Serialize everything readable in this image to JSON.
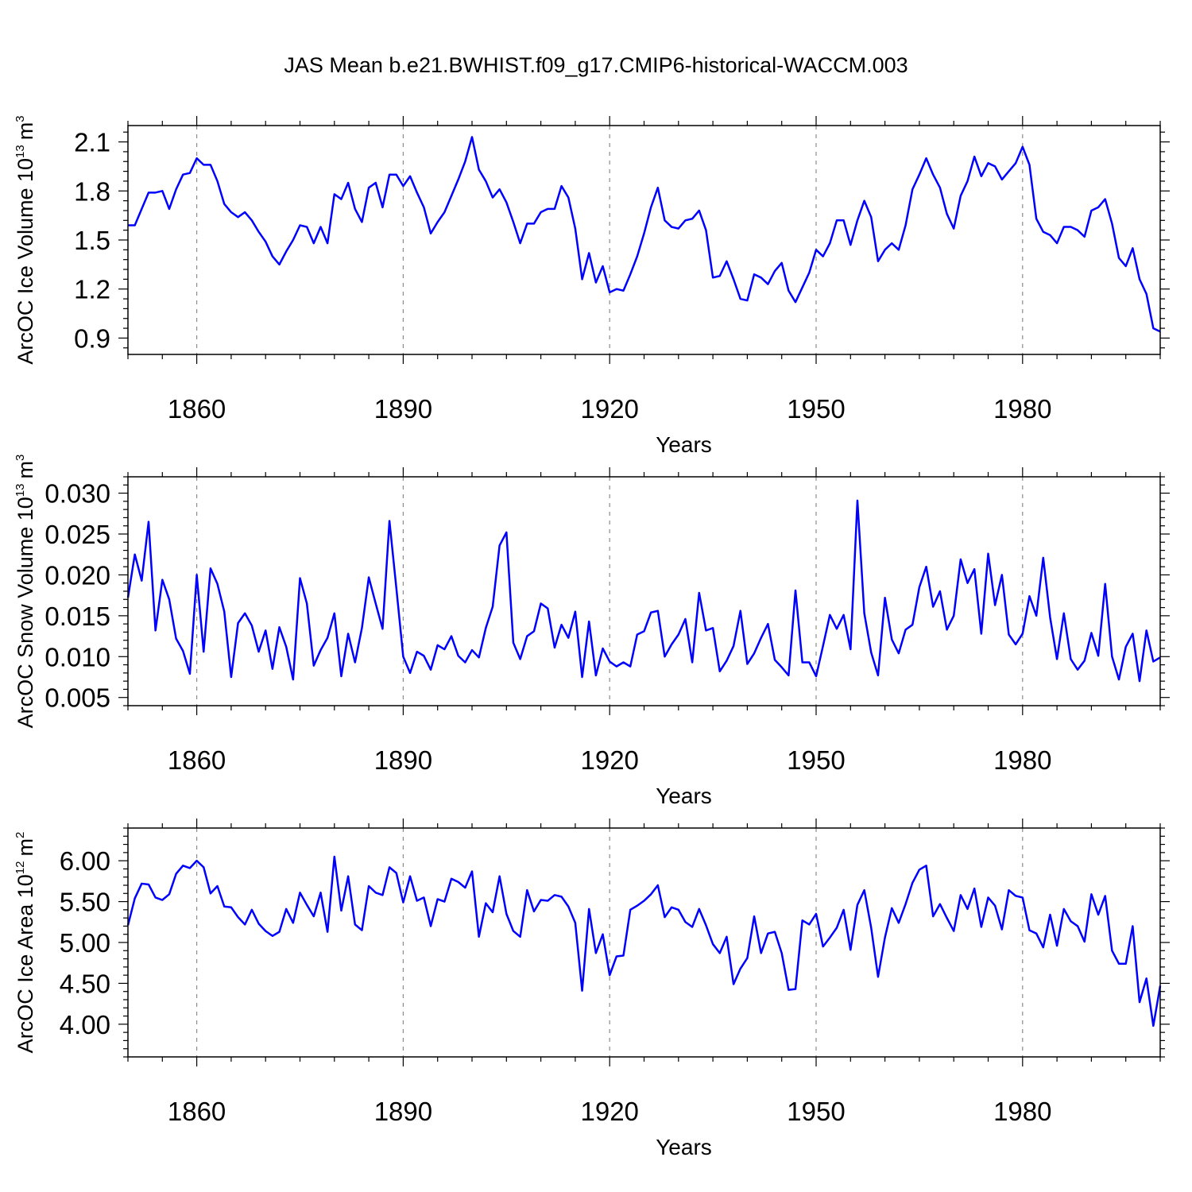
{
  "title": "JAS Mean b.e21.BWHIST.f09_g17.CMIP6-historical-WACCM.003",
  "series_color": "#0000ff",
  "grid_color": "#8c8c8c",
  "chart_data": [
    {
      "type": "line",
      "name": "ice-volume",
      "ylabel": "ArcOC Ice Volume 10",
      "ylabel_exp": "13",
      "ylabel_unit": "m",
      "ylabel_unit_exp": "3",
      "xlabel": "Years",
      "x_start": 1850,
      "xlim": [
        1850,
        2000
      ],
      "ylim": [
        0.8,
        2.2
      ],
      "xticks": [
        1860,
        1890,
        1920,
        1950,
        1980
      ],
      "xtick_labels": [
        "1860",
        "1890",
        "1920",
        "1950",
        "1980"
      ],
      "yticks": [
        0.9,
        1.2,
        1.5,
        1.8,
        2.1
      ],
      "ytick_labels": [
        "0.9",
        "1.2",
        "1.5",
        "1.8",
        "2.1"
      ],
      "values": [
        1.59,
        1.59,
        1.69,
        1.79,
        1.79,
        1.8,
        1.69,
        1.81,
        1.9,
        1.91,
        2.0,
        1.96,
        1.96,
        1.86,
        1.72,
        1.67,
        1.64,
        1.67,
        1.62,
        1.55,
        1.49,
        1.4,
        1.35,
        1.43,
        1.5,
        1.59,
        1.58,
        1.48,
        1.58,
        1.48,
        1.78,
        1.75,
        1.85,
        1.69,
        1.61,
        1.82,
        1.85,
        1.7,
        1.9,
        1.9,
        1.83,
        1.89,
        1.79,
        1.7,
        1.54,
        1.61,
        1.67,
        1.77,
        1.87,
        1.98,
        2.13,
        1.93,
        1.86,
        1.76,
        1.81,
        1.73,
        1.61,
        1.48,
        1.6,
        1.6,
        1.67,
        1.69,
        1.69,
        1.83,
        1.76,
        1.57,
        1.26,
        1.42,
        1.24,
        1.34,
        1.18,
        1.2,
        1.19,
        1.29,
        1.4,
        1.54,
        1.7,
        1.82,
        1.62,
        1.58,
        1.57,
        1.62,
        1.63,
        1.68,
        1.56,
        1.27,
        1.28,
        1.37,
        1.26,
        1.14,
        1.13,
        1.29,
        1.27,
        1.23,
        1.31,
        1.36,
        1.19,
        1.12,
        1.21,
        1.3,
        1.44,
        1.4,
        1.48,
        1.62,
        1.62,
        1.47,
        1.62,
        1.74,
        1.64,
        1.37,
        1.44,
        1.48,
        1.44,
        1.59,
        1.81,
        1.9,
        2.0,
        1.9,
        1.82,
        1.66,
        1.57,
        1.77,
        1.86,
        2.01,
        1.89,
        1.97,
        1.95,
        1.87,
        1.92,
        1.97,
        2.07,
        1.96,
        1.63,
        1.55,
        1.53,
        1.48,
        1.58,
        1.58,
        1.56,
        1.52,
        1.68,
        1.7,
        1.75,
        1.6,
        1.39,
        1.34,
        1.45,
        1.26,
        1.17,
        0.96,
        0.94
      ]
    },
    {
      "type": "line",
      "name": "snow-volume",
      "ylabel": "ArcOC Snow Volume 10",
      "ylabel_exp": "13",
      "ylabel_unit": "m",
      "ylabel_unit_exp": "3",
      "xlabel": "Years",
      "x_start": 1850,
      "xlim": [
        1850,
        2000
      ],
      "ylim": [
        0.004,
        0.032
      ],
      "xticks": [
        1860,
        1890,
        1920,
        1950,
        1980
      ],
      "xtick_labels": [
        "1860",
        "1890",
        "1920",
        "1950",
        "1980"
      ],
      "yticks": [
        0.005,
        0.01,
        0.015,
        0.02,
        0.025,
        0.03
      ],
      "ytick_labels": [
        "0.005",
        "0.010",
        "0.015",
        "0.020",
        "0.025",
        "0.030"
      ],
      "values": [
        0.0172,
        0.0225,
        0.0193,
        0.0265,
        0.0132,
        0.0194,
        0.017,
        0.0122,
        0.0107,
        0.0079,
        0.02,
        0.0106,
        0.0208,
        0.0189,
        0.0155,
        0.0075,
        0.0141,
        0.0153,
        0.0138,
        0.0106,
        0.0132,
        0.0085,
        0.0136,
        0.0112,
        0.0072,
        0.0196,
        0.0165,
        0.0089,
        0.0108,
        0.0123,
        0.0153,
        0.0076,
        0.0128,
        0.0093,
        0.0135,
        0.0197,
        0.0165,
        0.0134,
        0.0266,
        0.0184,
        0.01,
        0.008,
        0.0106,
        0.0101,
        0.0084,
        0.0114,
        0.0109,
        0.0125,
        0.0101,
        0.0093,
        0.0108,
        0.0099,
        0.0135,
        0.0161,
        0.0236,
        0.0252,
        0.0117,
        0.0097,
        0.0125,
        0.0131,
        0.0165,
        0.0159,
        0.0111,
        0.0139,
        0.0123,
        0.0155,
        0.0075,
        0.0143,
        0.0077,
        0.011,
        0.0094,
        0.0088,
        0.0093,
        0.0088,
        0.0127,
        0.0131,
        0.0154,
        0.0156,
        0.01,
        0.0115,
        0.0127,
        0.0146,
        0.0093,
        0.0178,
        0.0132,
        0.0135,
        0.0082,
        0.0095,
        0.0113,
        0.0156,
        0.0091,
        0.0104,
        0.0123,
        0.014,
        0.0096,
        0.0087,
        0.0077,
        0.0181,
        0.0093,
        0.0093,
        0.0076,
        0.0113,
        0.0151,
        0.0134,
        0.0151,
        0.0109,
        0.0291,
        0.0153,
        0.0105,
        0.0077,
        0.0172,
        0.0121,
        0.0104,
        0.0133,
        0.0139,
        0.0185,
        0.021,
        0.0161,
        0.018,
        0.0133,
        0.015,
        0.0219,
        0.019,
        0.0207,
        0.0128,
        0.0226,
        0.0163,
        0.02,
        0.0127,
        0.0115,
        0.0128,
        0.0174,
        0.015,
        0.0221,
        0.0148,
        0.0097,
        0.0153,
        0.0097,
        0.0084,
        0.0095,
        0.0129,
        0.0101,
        0.0189,
        0.01,
        0.0072,
        0.0112,
        0.0128,
        0.007,
        0.0132,
        0.0094,
        0.0099
      ]
    },
    {
      "type": "line",
      "name": "ice-area",
      "ylabel": "ArcOC Ice Area 10",
      "ylabel_exp": "12",
      "ylabel_unit": "m",
      "ylabel_unit_exp": "2",
      "xlabel": "Years",
      "x_start": 1850,
      "xlim": [
        1850,
        2000
      ],
      "ylim": [
        3.6,
        6.4
      ],
      "xticks": [
        1860,
        1890,
        1920,
        1950,
        1980
      ],
      "xtick_labels": [
        "1860",
        "1890",
        "1920",
        "1950",
        "1980"
      ],
      "yticks": [
        4.0,
        4.5,
        5.0,
        5.5,
        6.0
      ],
      "ytick_labels": [
        "4.00",
        "4.50",
        "5.00",
        "5.50",
        "6.00"
      ],
      "values": [
        5.21,
        5.54,
        5.72,
        5.71,
        5.55,
        5.52,
        5.59,
        5.84,
        5.94,
        5.91,
        6.0,
        5.92,
        5.6,
        5.69,
        5.44,
        5.43,
        5.31,
        5.22,
        5.4,
        5.23,
        5.14,
        5.08,
        5.13,
        5.41,
        5.24,
        5.61,
        5.46,
        5.32,
        5.61,
        5.13,
        6.05,
        5.39,
        5.81,
        5.22,
        5.15,
        5.69,
        5.61,
        5.58,
        5.92,
        5.85,
        5.49,
        5.81,
        5.51,
        5.55,
        5.2,
        5.53,
        5.5,
        5.78,
        5.74,
        5.67,
        5.87,
        5.07,
        5.48,
        5.37,
        5.81,
        5.35,
        5.14,
        5.07,
        5.64,
        5.38,
        5.52,
        5.51,
        5.58,
        5.56,
        5.44,
        5.24,
        4.41,
        5.41,
        4.87,
        5.1,
        4.6,
        4.83,
        4.84,
        5.4,
        5.45,
        5.51,
        5.59,
        5.7,
        5.31,
        5.43,
        5.4,
        5.25,
        5.19,
        5.41,
        5.21,
        4.98,
        4.87,
        5.07,
        4.49,
        4.68,
        4.81,
        5.32,
        4.87,
        5.11,
        5.13,
        4.87,
        4.42,
        4.43,
        5.27,
        5.22,
        5.35,
        4.95,
        5.06,
        5.18,
        5.4,
        4.91,
        5.46,
        5.64,
        5.18,
        4.58,
        5.06,
        5.42,
        5.24,
        5.47,
        5.73,
        5.89,
        5.94,
        5.32,
        5.47,
        5.3,
        5.14,
        5.58,
        5.41,
        5.66,
        5.19,
        5.55,
        5.45,
        5.16,
        5.64,
        5.57,
        5.55,
        5.15,
        5.11,
        4.94,
        5.34,
        4.96,
        5.41,
        5.26,
        5.2,
        5.01,
        5.59,
        5.34,
        5.57,
        4.9,
        4.74,
        4.74,
        5.2,
        4.27,
        4.56,
        3.98,
        4.47
      ]
    }
  ]
}
